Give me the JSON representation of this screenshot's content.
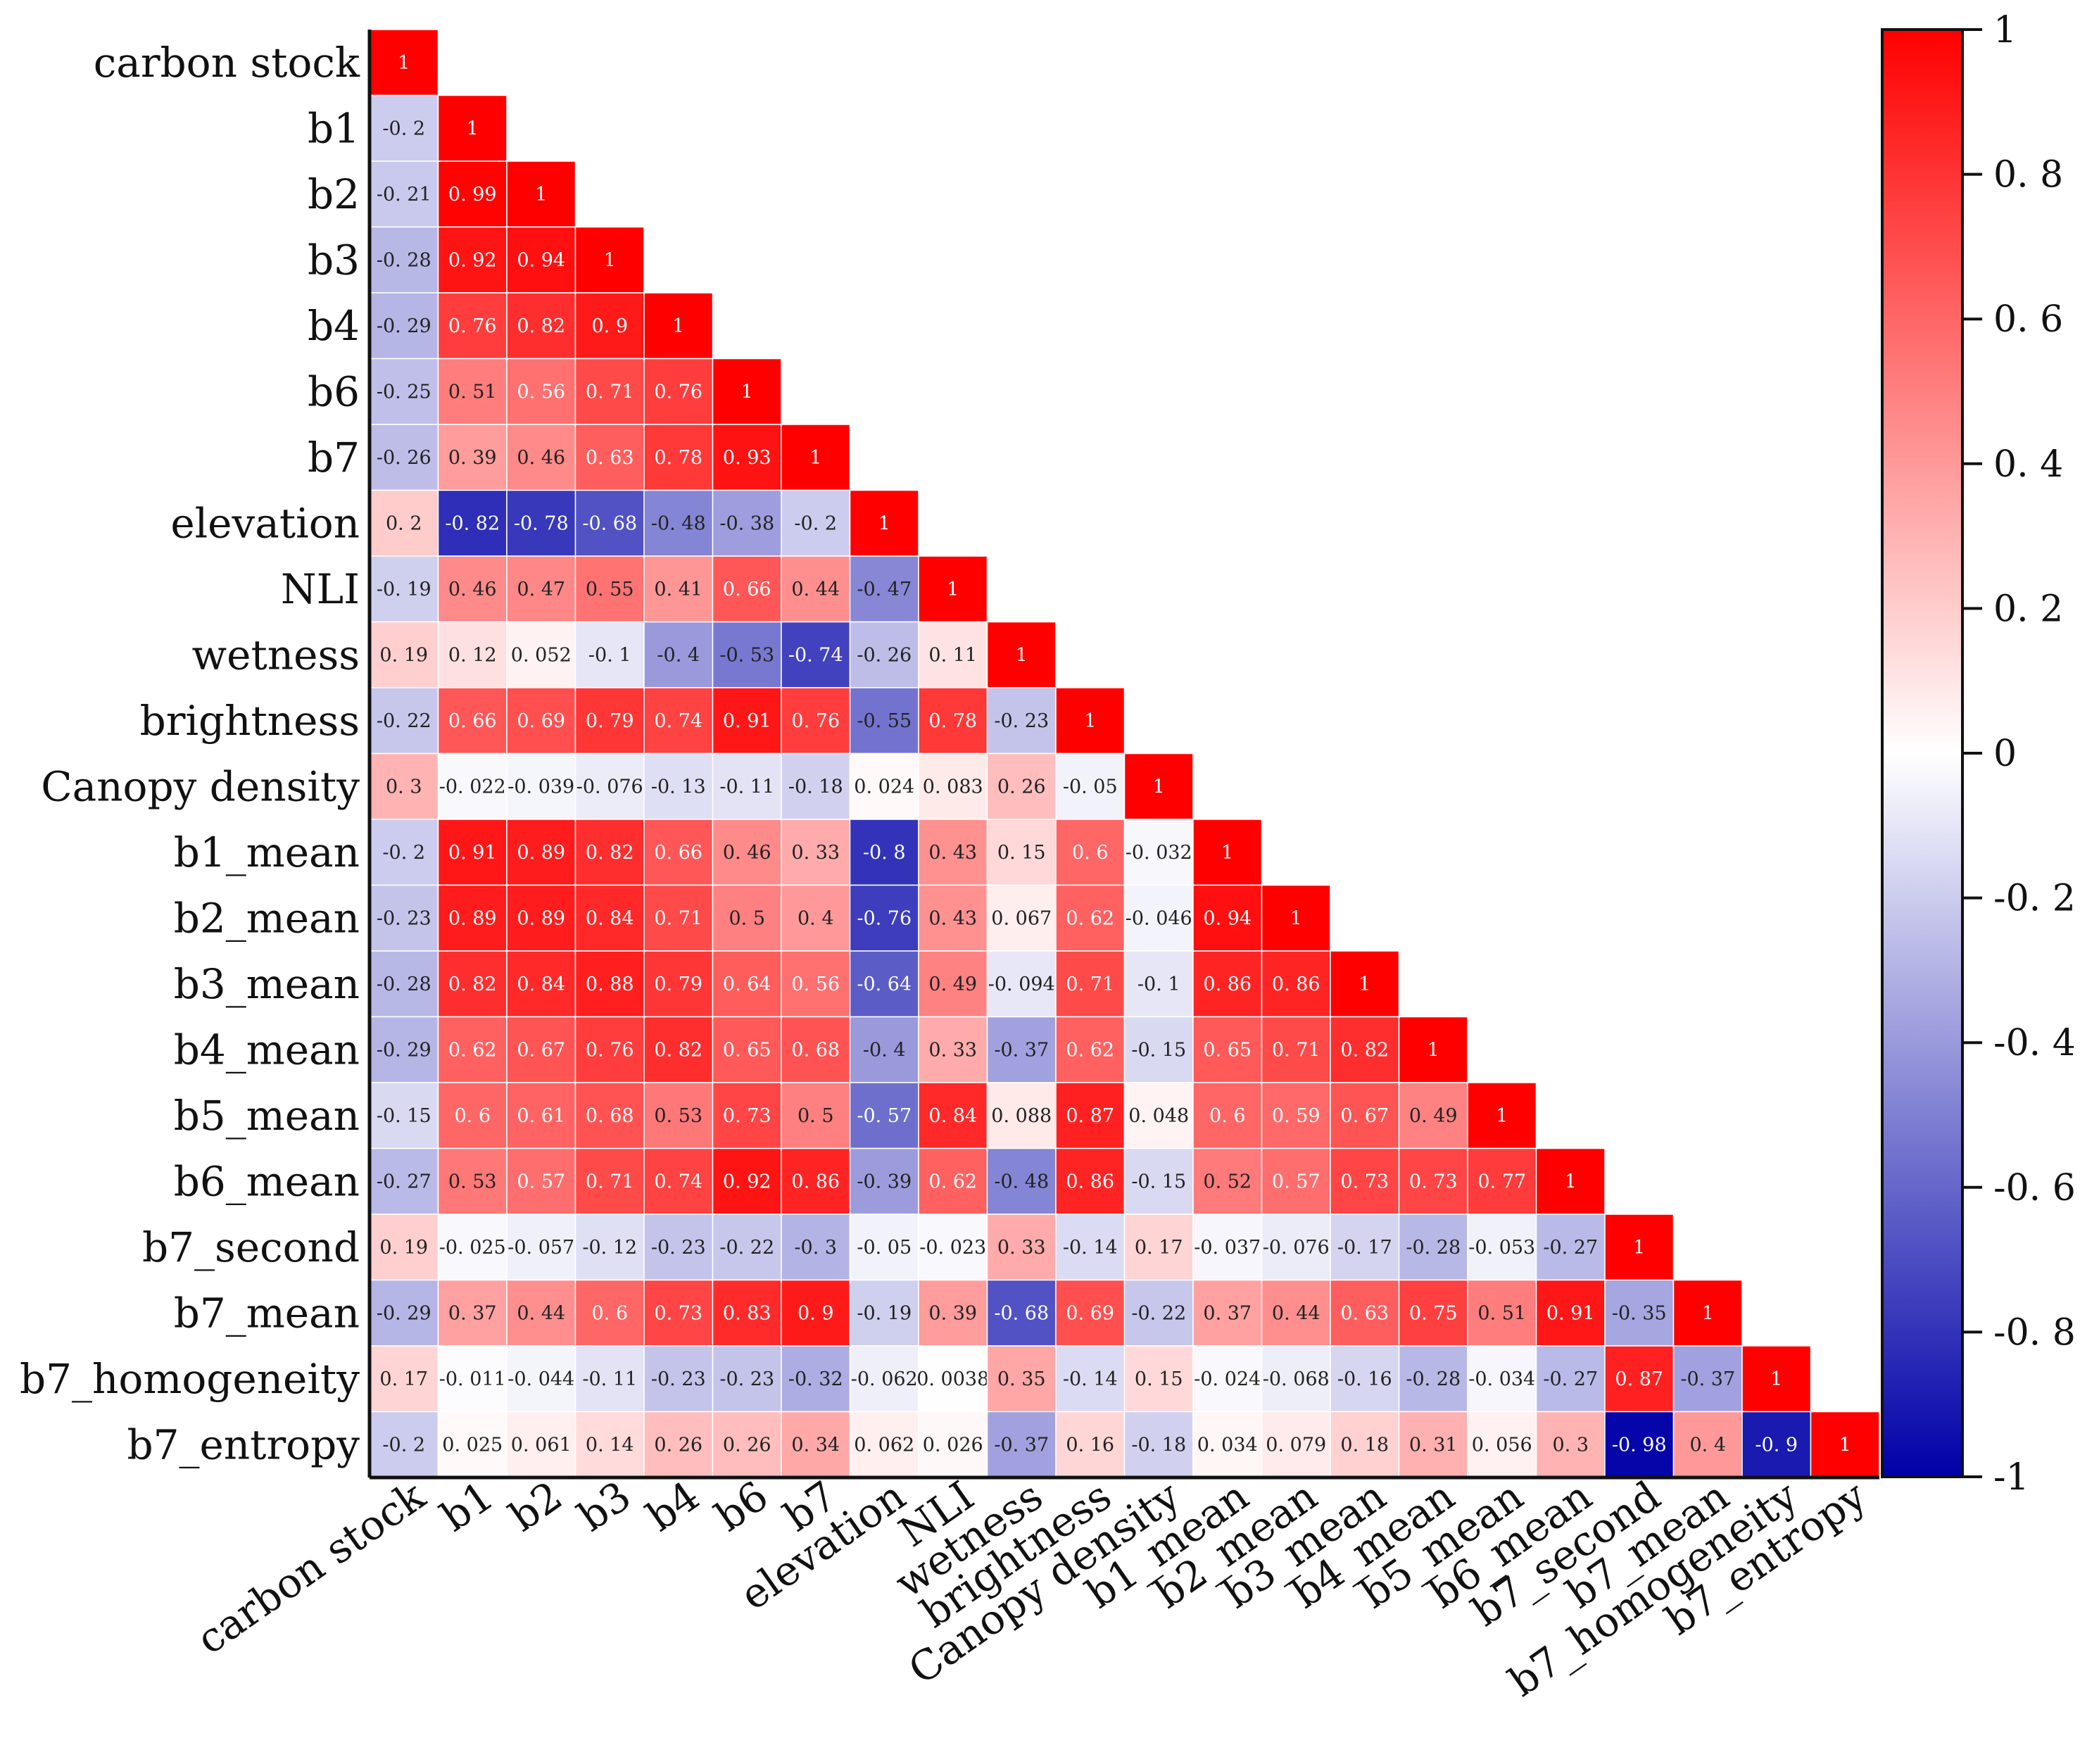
{
  "chart_data": {
    "type": "heatmap",
    "layout": "lower-triangular correlation matrix",
    "variables": [
      "carbon stock",
      "b1",
      "b2",
      "b3",
      "b4",
      "b6",
      "b7",
      "elevation",
      "NLI",
      "wetness",
      "brightness",
      "Canopy density",
      "b1_mean",
      "b2_mean",
      "b3_mean",
      "b4_mean",
      "b5_mean",
      "b6_mean",
      "b7_second",
      "b7_mean",
      "b7_homogeneity",
      "b7_entropy"
    ],
    "matrix": [
      [
        "1"
      ],
      [
        "-0.2",
        "1"
      ],
      [
        "-0.21",
        "0.99",
        "1"
      ],
      [
        "-0.28",
        "0.92",
        "0.94",
        "1"
      ],
      [
        "-0.29",
        "0.76",
        "0.82",
        "0.9",
        "1"
      ],
      [
        "-0.25",
        "0.51",
        "0.56",
        "0.71",
        "0.76",
        "1"
      ],
      [
        "-0.26",
        "0.39",
        "0.46",
        "0.63",
        "0.78",
        "0.93",
        "1"
      ],
      [
        "0.2",
        "-0.82",
        "-0.78",
        "-0.68",
        "-0.48",
        "-0.38",
        "-0.2",
        "1"
      ],
      [
        "-0.19",
        "0.46",
        "0.47",
        "0.55",
        "0.41",
        "0.66",
        "0.44",
        "-0.47",
        "1"
      ],
      [
        "0.19",
        "0.12",
        "0.052",
        "-0.1",
        "-0.4",
        "-0.53",
        "-0.74",
        "-0.26",
        "0.11",
        "1"
      ],
      [
        "-0.22",
        "0.66",
        "0.69",
        "0.79",
        "0.74",
        "0.91",
        "0.76",
        "-0.55",
        "0.78",
        "-0.23",
        "1"
      ],
      [
        "0.3",
        "-0.022",
        "-0.039",
        "-0.076",
        "-0.13",
        "-0.11",
        "-0.18",
        "0.024",
        "0.083",
        "0.26",
        "-0.05",
        "1"
      ],
      [
        "-0.2",
        "0.91",
        "0.89",
        "0.82",
        "0.66",
        "0.46",
        "0.33",
        "-0.8",
        "0.43",
        "0.15",
        "0.6",
        "-0.032",
        "1"
      ],
      [
        "-0.23",
        "0.89",
        "0.89",
        "0.84",
        "0.71",
        "0.5",
        "0.4",
        "-0.76",
        "0.43",
        "0.067",
        "0.62",
        "-0.046",
        "0.94",
        "1"
      ],
      [
        "-0.28",
        "0.82",
        "0.84",
        "0.88",
        "0.79",
        "0.64",
        "0.56",
        "-0.64",
        "0.49",
        "-0.094",
        "0.71",
        "-0.1",
        "0.86",
        "0.86",
        "1"
      ],
      [
        "-0.29",
        "0.62",
        "0.67",
        "0.76",
        "0.82",
        "0.65",
        "0.68",
        "-0.4",
        "0.33",
        "-0.37",
        "0.62",
        "-0.15",
        "0.65",
        "0.71",
        "0.82",
        "1"
      ],
      [
        "-0.15",
        "0.6",
        "0.61",
        "0.68",
        "0.53",
        "0.73",
        "0.5",
        "-0.57",
        "0.84",
        "0.088",
        "0.87",
        "0.048",
        "0.6",
        "0.59",
        "0.67",
        "0.49",
        "1"
      ],
      [
        "-0.27",
        "0.53",
        "0.57",
        "0.71",
        "0.74",
        "0.92",
        "0.86",
        "-0.39",
        "0.62",
        "-0.48",
        "0.86",
        "-0.15",
        "0.52",
        "0.57",
        "0.73",
        "0.73",
        "0.77",
        "1"
      ],
      [
        "0.19",
        "-0.025",
        "-0.057",
        "-0.12",
        "-0.23",
        "-0.22",
        "-0.3",
        "-0.05",
        "-0.023",
        "0.33",
        "-0.14",
        "0.17",
        "-0.037",
        "-0.076",
        "-0.17",
        "-0.28",
        "-0.053",
        "-0.27",
        "1"
      ],
      [
        "-0.29",
        "0.37",
        "0.44",
        "0.6",
        "0.73",
        "0.83",
        "0.9",
        "-0.19",
        "0.39",
        "-0.68",
        "0.69",
        "-0.22",
        "0.37",
        "0.44",
        "0.63",
        "0.75",
        "0.51",
        "0.91",
        "-0.35",
        "1"
      ],
      [
        "0.17",
        "-0.011",
        "-0.044",
        "-0.11",
        "-0.23",
        "-0.23",
        "-0.32",
        "-0.062",
        "0.0038",
        "0.35",
        "-0.14",
        "0.15",
        "-0.024",
        "-0.068",
        "-0.16",
        "-0.28",
        "-0.034",
        "-0.27",
        "0.87",
        "-0.37",
        "1"
      ],
      [
        "-0.2",
        "0.025",
        "0.061",
        "0.14",
        "0.26",
        "0.26",
        "0.34",
        "0.062",
        "0.026",
        "-0.37",
        "0.16",
        "-0.18",
        "0.034",
        "0.079",
        "0.18",
        "0.31",
        "0.056",
        "0.3",
        "-0.98",
        "0.4",
        "-0.9",
        "1"
      ]
    ],
    "colorbar": {
      "range": [
        -1,
        1
      ],
      "ticks": [
        "1",
        "0.8",
        "0.6",
        "0.4",
        "0.2",
        "0",
        "-0.2",
        "-0.4",
        "-0.6",
        "-0.8",
        "-1"
      ],
      "colors": {
        "negative": "#0000a8",
        "zero": "#ffffff",
        "positive": "#ff0000"
      }
    }
  }
}
